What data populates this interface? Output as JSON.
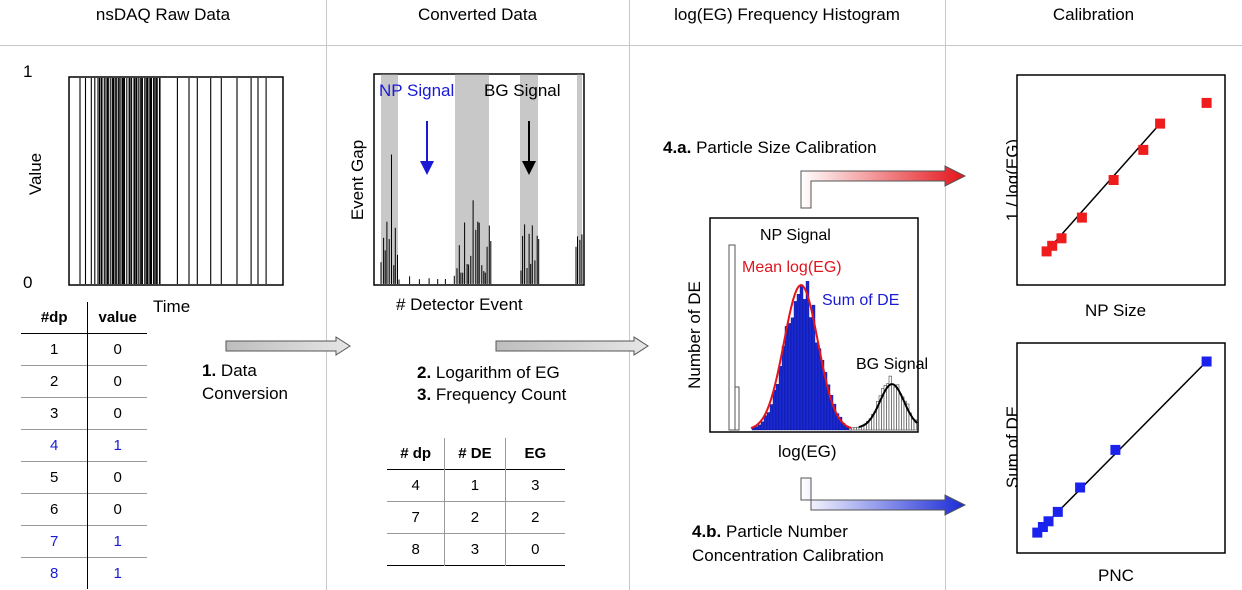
{
  "panels": {
    "raw": {
      "header": "nsDAQ Raw Data",
      "y_label": "Value",
      "y_tick_top": "1",
      "y_tick_bottom": "0",
      "x_label": "Time"
    },
    "converted": {
      "header": "Converted Data",
      "y_label": "Event Gap",
      "x_label": "# Detector Event",
      "np_label": "NP Signal",
      "bg_label": "BG Signal"
    },
    "histogram": {
      "header": "log(EG) Frequency Histogram",
      "y_label": "Number of DE",
      "x_label": "log(EG)",
      "np_label": "NP Signal",
      "mean_label": "Mean log(EG)",
      "sum_label": "Sum of DE",
      "bg_label": "BG Signal"
    },
    "calibration": {
      "header": "Calibration"
    }
  },
  "steps": {
    "s1_num": "1.",
    "s1_a": "Data",
    "s1_b": "Conversion",
    "s2_num": "2.",
    "s2_text": "Logarithm of EG",
    "s3_num": "3.",
    "s3_text": "Frequency Count",
    "s4a_num": "4.a.",
    "s4a_text": "Particle Size Calibration",
    "s4b_num": "4.b.",
    "s4b_text": "Particle Number",
    "s4b_text2": "Concentration Calibration"
  },
  "raw_table": {
    "headers": [
      "#dp",
      "value"
    ],
    "rows": [
      {
        "dp": "1",
        "value": "0",
        "highlight": false
      },
      {
        "dp": "2",
        "value": "0",
        "highlight": false
      },
      {
        "dp": "3",
        "value": "0",
        "highlight": false
      },
      {
        "dp": "4",
        "value": "1",
        "highlight": true
      },
      {
        "dp": "5",
        "value": "0",
        "highlight": false
      },
      {
        "dp": "6",
        "value": "0",
        "highlight": false
      },
      {
        "dp": "7",
        "value": "1",
        "highlight": true
      },
      {
        "dp": "8",
        "value": "1",
        "highlight": true
      }
    ]
  },
  "conv_table": {
    "headers": [
      "# dp",
      "# DE",
      "EG"
    ],
    "rows": [
      [
        "4",
        "1",
        "3"
      ],
      [
        "7",
        "2",
        "2"
      ],
      [
        "8",
        "3",
        "0"
      ]
    ]
  },
  "chart_data": [
    {
      "type": "scatter",
      "xlabel": "NP Size",
      "ylabel": "1 / log(EG)",
      "color": "#ee1c1c",
      "x": [
        1,
        1.3,
        1.8,
        2.9,
        4.6,
        6.2,
        7.1,
        9.6
      ],
      "y": [
        1.2,
        1.5,
        1.9,
        3.0,
        5.0,
        6.6,
        8.0,
        9.1
      ],
      "fit": true
    },
    {
      "type": "scatter",
      "xlabel": "PNC",
      "ylabel": "Sum of DE",
      "color": "#1c22ee",
      "x": [
        0.5,
        0.8,
        1.1,
        1.6,
        2.8,
        4.7,
        9.6
      ],
      "y": [
        0.5,
        0.8,
        1.1,
        1.6,
        2.9,
        4.9,
        9.6
      ],
      "fit": true
    }
  ]
}
